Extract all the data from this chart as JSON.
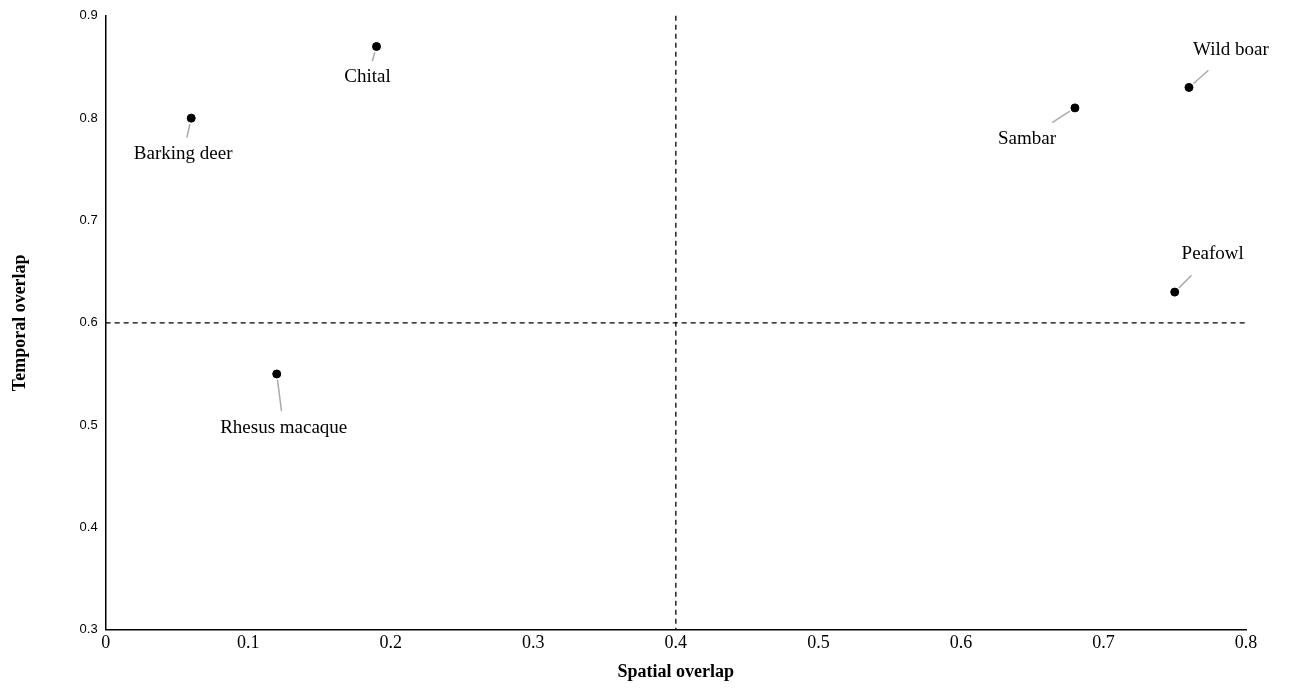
{
  "chart_data": {
    "type": "scatter",
    "xlabel": "Spatial overlap",
    "ylabel": "Temporal overlap",
    "x": [
      0.06,
      0.19,
      0.12,
      0.68,
      0.76,
      0.75
    ],
    "series": [
      {
        "color": "#000000",
        "values": [
          0.8,
          0.87,
          0.55,
          0.81,
          0.83,
          0.63
        ]
      }
    ],
    "xlim": [
      0,
      0.8
    ],
    "xticks": [
      0,
      0.1,
      0.2,
      0.3,
      0.4,
      0.5,
      0.6,
      0.7,
      0.8
    ],
    "ylim": [
      0.3,
      0.9
    ],
    "yticks": [
      0.3,
      0.4,
      0.5,
      0.6,
      0.7,
      0.8,
      0.9
    ],
    "marker": "circle",
    "grid": false,
    "legend": false,
    "ref_lines": [
      {
        "axis": "x",
        "value": 0.4,
        "color": "#000000",
        "line_style": "dashed"
      },
      {
        "axis": "y",
        "value": 0.6,
        "color": "#000000",
        "line_style": "dashed"
      }
    ],
    "annotations": [
      {
        "text": "Barking deer",
        "x": 0.06,
        "y": 0.8
      },
      {
        "text": "Chital",
        "x": 0.19,
        "y": 0.87
      },
      {
        "text": "Rhesus macaque",
        "x": 0.12,
        "y": 0.55
      },
      {
        "text": "Sambar",
        "x": 0.68,
        "y": 0.81
      },
      {
        "text": "Wild boar",
        "x": 0.76,
        "y": 0.83
      },
      {
        "text": "Peafowl",
        "x": 0.75,
        "y": 0.63
      }
    ]
  }
}
